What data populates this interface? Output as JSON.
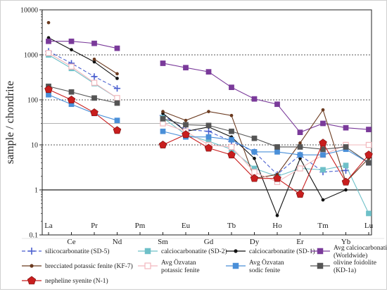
{
  "chart_data": {
    "type": "line",
    "ylabel": "sample / chondrite",
    "yscale": "log",
    "ylim": [
      0.1,
      10000
    ],
    "yticks": [
      "0.1",
      "1",
      "10",
      "100",
      "1000",
      "10000"
    ],
    "x_top_row": [
      "La",
      "Pr",
      "Pm",
      "Eu",
      "Tb",
      "Ho",
      "Tm",
      "Lu"
    ],
    "x_bottom_row": [
      "Ce",
      "Nd",
      "Sm",
      "Gd",
      "Dy",
      "Er",
      "Yb"
    ],
    "x": [
      "La",
      "Ce",
      "Pr",
      "Nd",
      "Pm",
      "Sm",
      "Eu",
      "Gd",
      "Tb",
      "Dy",
      "Ho",
      "Er",
      "Tm",
      "Yb",
      "Lu"
    ],
    "reference_lines": [
      1,
      10,
      30,
      100,
      1000
    ],
    "series": [
      {
        "name": "silicocarbonatite (SD-5)",
        "color": "#4a5fcf",
        "marker": "plus",
        "dashed": true,
        "values": [
          1200,
          650,
          330,
          180,
          null,
          45,
          22,
          20,
          12,
          7,
          2.2,
          6,
          2.5,
          2.7,
          null
        ]
      },
      {
        "name": "calciocarbonatite (SD-2)",
        "color": "#6ec0c8",
        "marker": "square",
        "values": [
          1000,
          500,
          230,
          110,
          null,
          40,
          17,
          12,
          8,
          3,
          2.0,
          3,
          2.8,
          3.5,
          0.3
        ]
      },
      {
        "name": "calciocarbonatite (SD-1)",
        "color": "#111111",
        "marker": "dot",
        "values": [
          2400,
          1300,
          700,
          300,
          null,
          50,
          20,
          25,
          15,
          5,
          0.27,
          5,
          0.6,
          1.0,
          null
        ]
      },
      {
        "name": "Avg calciocarbonatite (Worldwide)",
        "color": "#7a3a9a",
        "marker": "square",
        "values": [
          2000,
          2000,
          1800,
          1400,
          null,
          650,
          520,
          420,
          190,
          105,
          80,
          19,
          30,
          24,
          22
        ]
      },
      {
        "name": "brecciated potassic fenite (KF-7)",
        "color": "#6b3a1f",
        "marker": "dot",
        "values": [
          5200,
          null,
          800,
          380,
          null,
          55,
          35,
          55,
          45,
          1.8,
          2.2,
          11,
          60,
          1.5,
          5
        ]
      },
      {
        "name": "Avg Özvatan potassic fenite",
        "color": "#f2b8bd",
        "marker": "square-open",
        "values": [
          1100,
          550,
          240,
          110,
          null,
          30,
          20,
          10,
          9,
          2.5,
          1.5,
          3,
          6,
          10,
          10
        ]
      },
      {
        "name": "Avg Özvatan sodic fenite",
        "color": "#4a8fd8",
        "marker": "square",
        "values": [
          130,
          80,
          50,
          35,
          null,
          20,
          15,
          15,
          13,
          7,
          7,
          6,
          6,
          8,
          4
        ]
      },
      {
        "name": "olivine foidolite (KD-1a)",
        "color": "#555555",
        "marker": "square",
        "values": [
          200,
          150,
          110,
          85,
          null,
          38,
          28,
          27,
          20,
          14,
          9,
          9,
          8,
          9,
          4
        ]
      },
      {
        "name": "nepheline syenite (N-1)",
        "color": "#c81e1e",
        "marker": "pentagon",
        "values": [
          170,
          100,
          52,
          21,
          null,
          10,
          17,
          8.5,
          6,
          1.8,
          1.8,
          0.8,
          11,
          1.5,
          6
        ]
      }
    ],
    "legend": {
      "placement": "bottom",
      "rows": [
        [
          "silicocarbonatite (SD-5)",
          "calciocarbonatite (SD-2)",
          "calciocarbonatite (SD-1)",
          "Avg calciocarbonatite\n(Worldwide)"
        ],
        [
          "brecciated potassic fenite (KF-7)",
          "Avg Özvatan\npotassic fenite",
          "Avg Özvatan\nsodic fenite",
          "olivine foidolite\n(KD-1a)"
        ],
        [
          "nepheline syenite (N-1)"
        ]
      ]
    }
  }
}
